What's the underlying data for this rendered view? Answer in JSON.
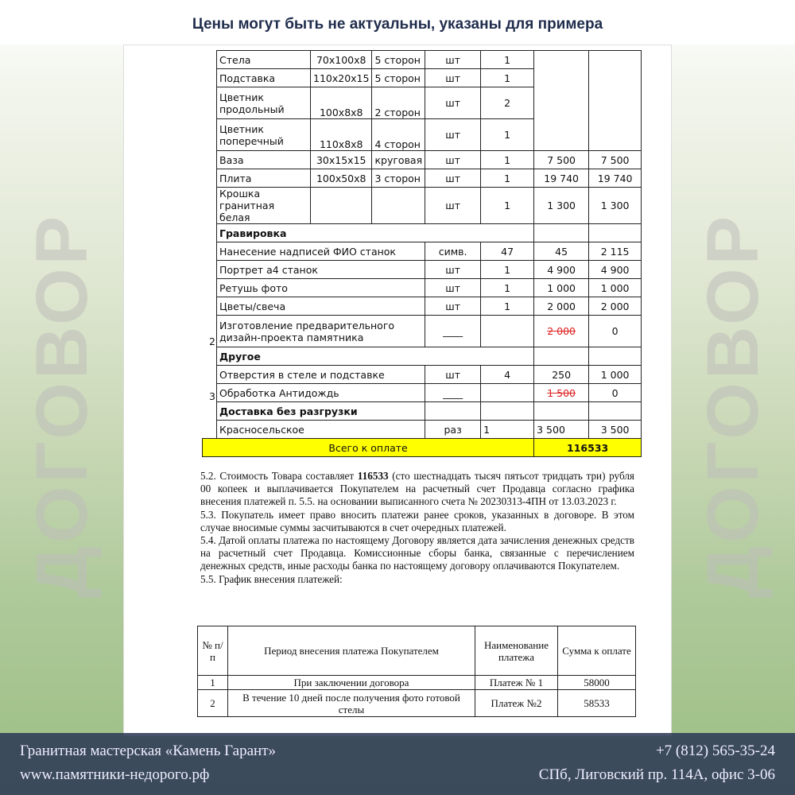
{
  "header": {
    "title": "Цены могут быть не актуальны, указаны для примера"
  },
  "side_text": "ДОГОВОР",
  "price_table": {
    "items": [
      {
        "num": "",
        "name": "Стела",
        "dim": "70x100x8",
        "proc": "5 сторон",
        "unit": "шт",
        "qty": "1"
      },
      {
        "num": "",
        "name": "Подставка",
        "dim": "110x20x15",
        "proc": "5 сторон",
        "unit": "шт",
        "qty": "1"
      },
      {
        "num": "",
        "name": "Цветник продольный",
        "dim": "100x8x8",
        "proc": "2 сторон",
        "unit": "шт",
        "qty": "2"
      },
      {
        "num": "",
        "name": "Цветник поперечный",
        "dim": "110x8x8",
        "proc": "4 сторон",
        "unit": "шт",
        "qty": "1"
      },
      {
        "num": "",
        "name": "Ваза",
        "dim": "30x15x15",
        "proc": "круговая",
        "unit": "шт",
        "qty": "1",
        "price": "7 500",
        "sum": "7 500"
      },
      {
        "num": "",
        "name": "Плита",
        "dim": "100x50x8",
        "proc": "3 сторон",
        "unit": "шт",
        "qty": "1",
        "price": "19 740",
        "sum": "19 740"
      },
      {
        "num": "",
        "name": "Крошка гранитная белая",
        "dim": "",
        "proc": "",
        "unit": "шт",
        "qty": "1",
        "price": "1 300",
        "sum": "1 300"
      }
    ],
    "sections": [
      {
        "title": "Гравировка",
        "rows": [
          {
            "num": "",
            "name": "Нанесение надписей ФИО станок",
            "unit": "симв.",
            "qty": "47",
            "price": "45",
            "sum": "2 115"
          },
          {
            "num": "",
            "name": "Портрет а4 станок",
            "unit": "шт",
            "qty": "1",
            "price": "4 900",
            "sum": "4 900"
          },
          {
            "num": "",
            "name": "Ретушь фото",
            "unit": "шт",
            "qty": "1",
            "price": "1 000",
            "sum": "1 000"
          },
          {
            "num": "",
            "name": "Цветы/свеча",
            "unit": "шт",
            "qty": "1",
            "price": "2 000",
            "sum": "2 000"
          },
          {
            "num": "2",
            "name": "Изготовление предварительного дизайн-проекта памятника",
            "unit": "____",
            "qty": "",
            "price": "2 000",
            "price_struck": true,
            "sum": "0"
          }
        ]
      },
      {
        "title": "Другое",
        "rows": [
          {
            "num": "",
            "name": "Отверстия в стеле и подставке",
            "unit": "шт",
            "qty": "4",
            "price": "250",
            "sum": "1 000"
          },
          {
            "num": "3",
            "name": "Обработка Антидождь",
            "unit": "____",
            "qty": "",
            "price": "1 500",
            "price_struck": true,
            "sum": "0"
          }
        ]
      },
      {
        "title": "Доставка без разгрузки",
        "rows": [
          {
            "num": "",
            "name": "Красносельское",
            "unit": "раз",
            "qty": "1",
            "price": "3 500",
            "sum": "3 500"
          }
        ]
      }
    ],
    "total_label": "Всего к оплате",
    "total_value": "116533",
    "total_color": "#ffff00"
  },
  "paragraphs": {
    "p52_a": "5.2. Стоимость Товара составляет ",
    "p52_bold": "116533",
    "p52_b": " (сто шестнадцать тысяч пятьсот тридцать три) рубля 00 копеек и выплачивается Покупателем на расчетный счет Продавца согласно графика внесения платежей п. 5.5. на основании выписанного счета № 20230313-4ПН от 13.03.2023 г.",
    "p53": "5.3. Покупатель имеет право вносить платежи ранее сроков, указанных в договоре. В этом случае вносимые суммы засчитываются в счет очередных платежей.",
    "p54": "5.4. Датой оплаты платежа по настоящему Договору является дата зачисления денежных средств на расчетный счет Продавца. Комиссионные сборы банка, связанные с перечислением денежных средств, иные расходы банка по настоящему договору оплачиваются Покупателем.",
    "p55": "5.5. График внесения платежей:"
  },
  "payment_table": {
    "headers": [
      "№ п/п",
      "Период внесения платежа Покупателем",
      "Наименование платежа",
      "Сумма к оплате"
    ],
    "rows": [
      [
        "1",
        "При заключении договора",
        "Платеж № 1",
        "58000"
      ],
      [
        "2",
        "В течение 10 дней после получения фото готовой стелы",
        "Платеж №2",
        "58533"
      ]
    ]
  },
  "footer": {
    "company": "Гранитная мастерская «Камень Гарант»",
    "site": "www.памятники-недорого.рф",
    "phone": "+7 (812) 565-35-24",
    "address": "СПб, Лиговский пр. 114А, офис 3-06"
  }
}
